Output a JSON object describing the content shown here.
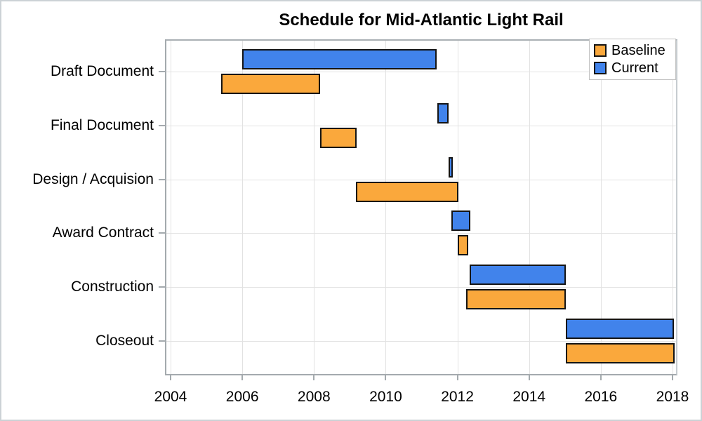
{
  "chart_data": {
    "type": "bar",
    "variant": "gantt",
    "title": "Schedule for Mid-Atlantic Light Rail",
    "categories": [
      "Draft Document",
      "Final Document",
      "Design / Acquision",
      "Award Contract",
      "Construction",
      "Closeout"
    ],
    "x_axis": {
      "min": 2004,
      "max": 2018,
      "tick_step": 2,
      "ticks": [
        2004,
        2006,
        2008,
        2010,
        2012,
        2014,
        2016,
        2018
      ]
    },
    "series": [
      {
        "name": "Baseline",
        "lane": "lower",
        "color": "#FAA83C",
        "intervals": [
          [
            2005.4,
            2008.17
          ],
          [
            2008.17,
            2009.19
          ],
          [
            2009.17,
            2012.03
          ],
          [
            2012.01,
            2012.3
          ],
          [
            2012.24,
            2015.02
          ],
          [
            2015.02,
            2018.06
          ]
        ]
      },
      {
        "name": "Current",
        "lane": "upper",
        "color": "#4183EB",
        "intervals": [
          [
            2006.0,
            2011.42
          ],
          [
            2011.44,
            2011.75
          ],
          [
            2011.75,
            2011.87
          ],
          [
            2011.84,
            2012.36
          ],
          [
            2012.34,
            2015.03
          ],
          [
            2015.02,
            2018.04
          ]
        ]
      }
    ],
    "legend": {
      "position": "top-right",
      "items": [
        {
          "label": "Baseline",
          "color": "#FAA83C"
        },
        {
          "label": "Current",
          "color": "#4183EB"
        }
      ]
    },
    "grid": true,
    "colors": {
      "bar_border": "#141414",
      "axis_frame": "#a4aaae",
      "gridline": "#e2e2e2",
      "text": "#000000",
      "background": "#ffffff"
    }
  }
}
